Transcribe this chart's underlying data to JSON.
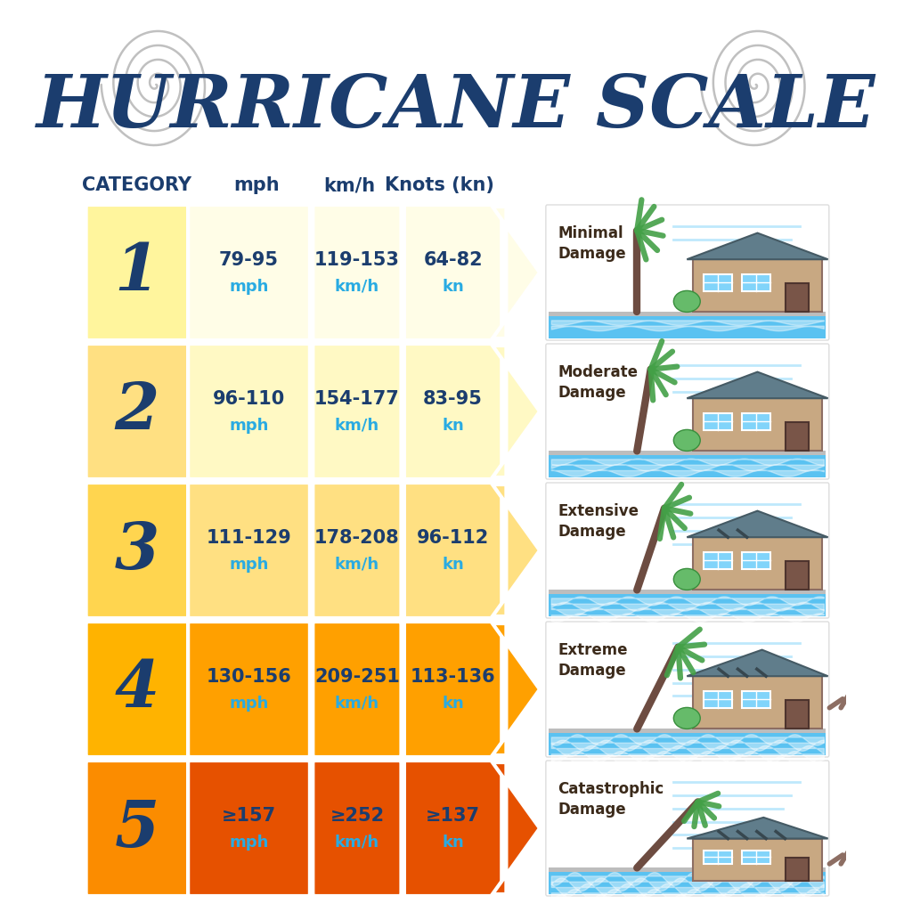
{
  "title": "HURRICANE SCALE",
  "title_color": "#1b3d6e",
  "header_color": "#1b3d6e",
  "background_color": "#ffffff",
  "col_headers": [
    "CATEGORY",
    "mph",
    "km/h",
    "Knots (kn)"
  ],
  "categories": [
    "1",
    "2",
    "3",
    "4",
    "5"
  ],
  "mph_top": [
    "79-95",
    "96-110",
    "111-129",
    "130-156",
    "≥157"
  ],
  "mph_bot": [
    "mph",
    "mph",
    "mph",
    "mph",
    "mph"
  ],
  "kmh_top": [
    "119-153",
    "154-177",
    "178-208",
    "209-251",
    "≥252"
  ],
  "kmh_bot": [
    "km/h",
    "km/h",
    "km/h",
    "km/h",
    "km/h"
  ],
  "kn_top": [
    "64-82",
    "83-95",
    "96-112",
    "113-136",
    "≥137"
  ],
  "kn_bot": [
    "kn",
    "kn",
    "kn",
    "kn",
    "kn"
  ],
  "damage_labels": [
    "Minimal\nDamage",
    "Moderate\nDamage",
    "Extensive\nDamage",
    "Extreme\nDamage",
    "Catastrophic\nDamage"
  ],
  "cat_colors": [
    "#FFF59D",
    "#FFE082",
    "#FFD54F",
    "#FFB300",
    "#FB8C00"
  ],
  "cell_colors": [
    "#FFFDE7",
    "#FFF9C4",
    "#FFE082",
    "#FFA000",
    "#E65100"
  ],
  "arrow_colors": [
    "#FFFDE7",
    "#FFF9C4",
    "#FFE082",
    "#FFA000",
    "#E65100"
  ],
  "number_color": "#1b3d6e",
  "val_top_color": "#1b3d6e",
  "val_bot_color": "#29ABE2",
  "damage_color": "#3b2a1a",
  "water_color": "#4FC3F7",
  "water_dark": "#0288D1",
  "ground_color": "#BDBDBD",
  "wall_color": "#C8A882",
  "roof_color": "#607D8B",
  "win_color": "#81D4FA",
  "door_color": "#795548",
  "leaf_color": "#43A047",
  "trunk_color": "#6D4C41",
  "wind_color": "#B3E5FC",
  "debris_color": "#8D6E63"
}
